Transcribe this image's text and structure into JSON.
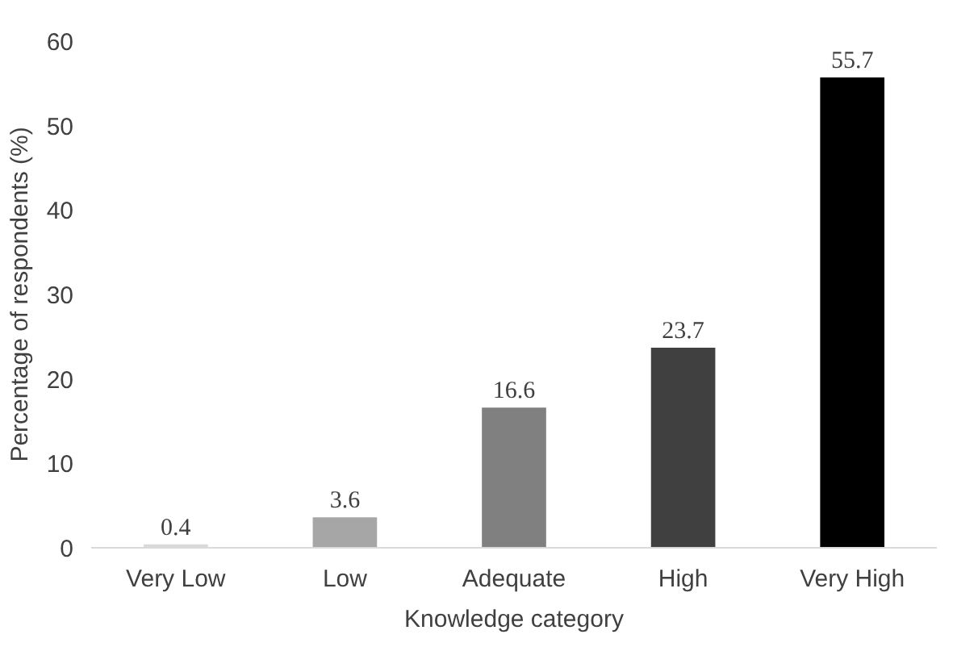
{
  "chart_data": {
    "type": "bar",
    "xlabel": "Knowledge category",
    "ylabel": "Percentage of respondents (%)",
    "categories": [
      "Very Low",
      "Low",
      "Adequate",
      "High",
      "Very High"
    ],
    "values": [
      0.4,
      3.6,
      16.6,
      23.7,
      55.7
    ],
    "colors": [
      "#d9d9d9",
      "#a6a6a6",
      "#808080",
      "#404040",
      "#000000"
    ],
    "ylim": [
      0,
      60
    ],
    "yticks": [
      0,
      10,
      20,
      30,
      40,
      50,
      60
    ],
    "data_labels": true,
    "grid": false
  }
}
